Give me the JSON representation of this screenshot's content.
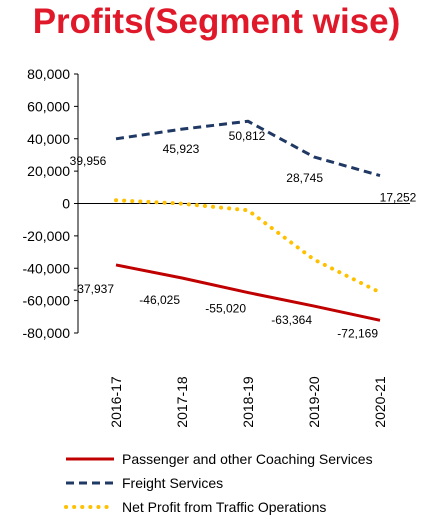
{
  "chart_data": {
    "type": "line",
    "title": "Profits(Segment wise)",
    "title_color": "#e0192a",
    "categories": [
      "2016-17",
      "2017-18",
      "2018-19",
      "2019-20",
      "2020-21"
    ],
    "ylim": [
      -80000,
      80000
    ],
    "yticks": [
      80000,
      60000,
      40000,
      20000,
      0,
      -20000,
      -40000,
      -60000,
      -80000
    ],
    "ytick_labels": [
      "80,000",
      "60,000",
      "40,000",
      "20,000",
      "0",
      "-20,000",
      "-40,000",
      "-60,000",
      "-80,000"
    ],
    "grid": false,
    "legend_position": "bottom",
    "series": [
      {
        "name": "Passenger and other Coaching Services",
        "values": [
          -37937,
          -46025,
          -55020,
          -63364,
          -72169
        ],
        "labels": [
          "-37,937",
          "-46,025",
          "-55,020",
          "-63,364",
          "-72,169"
        ],
        "color": "#c00000",
        "style": "solid"
      },
      {
        "name": "Freight Services",
        "values": [
          39956,
          45923,
          50812,
          28745,
          17252
        ],
        "labels": [
          "39,956",
          "45,923",
          "50,812",
          "28,745",
          "17,252"
        ],
        "color": "#1f3864",
        "style": "dashed"
      },
      {
        "name": "Net Profit from Traffic Operations",
        "values": [
          2019,
          -102,
          -4208,
          -34619,
          -54917
        ],
        "color": "#ffc000",
        "style": "dotted"
      }
    ]
  }
}
